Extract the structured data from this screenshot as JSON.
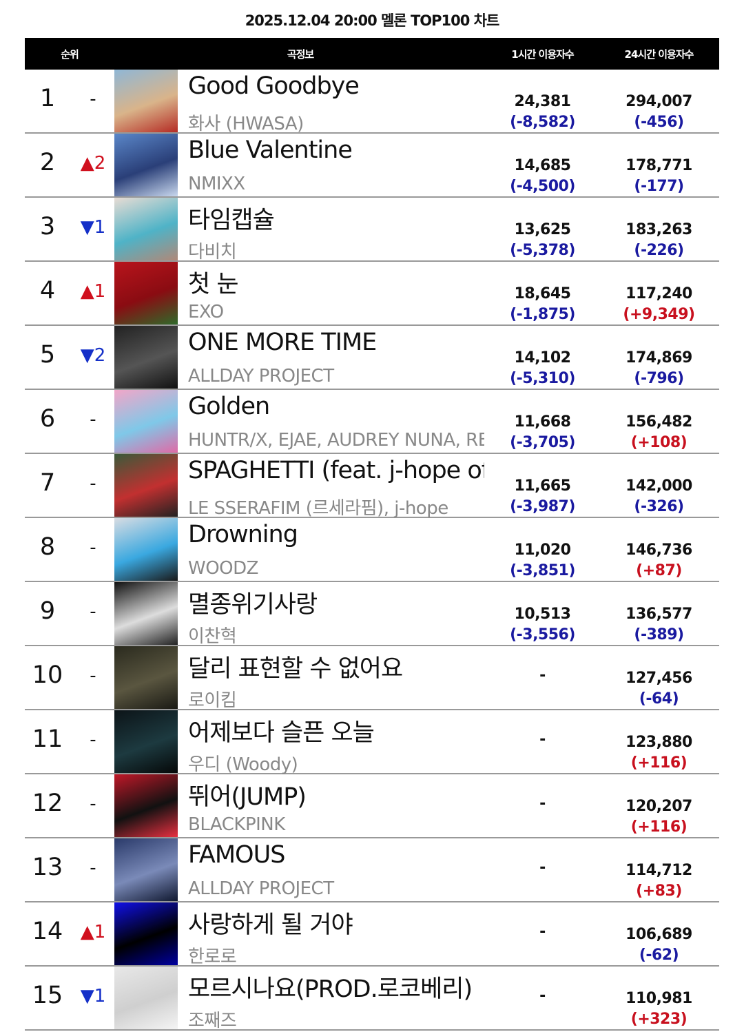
{
  "title": "2025.12.04 20:00 멜론 TOP100 차트",
  "columns": {
    "rank": "순위",
    "info": "곡정보",
    "hour": "1시간 이용자수",
    "day": "24시간 이용자수"
  },
  "colors": {
    "negative": "#1a1aa0",
    "positive": "#c8101e",
    "rank_up": "#d0101e",
    "rank_down": "#1530c8"
  },
  "rows": [
    {
      "rank": "1",
      "change": "-",
      "dir": "same",
      "song": "Good Goodbye",
      "artist": "화사 (HWASA)",
      "hour": "24,381",
      "hour_diff": "(-8,582)",
      "day": "294,007",
      "day_diff": "(-456)",
      "art": [
        "#8fb7d6",
        "#d9b48a",
        "#b52b24"
      ]
    },
    {
      "rank": "2",
      "change": "▲2",
      "dir": "up",
      "song": "Blue Valentine",
      "artist": "NMIXX",
      "hour": "14,685",
      "hour_diff": "(-4,500)",
      "day": "178,771",
      "day_diff": "(-177)",
      "art": [
        "#5a86c8",
        "#2a3f78",
        "#c9d8ee"
      ]
    },
    {
      "rank": "3",
      "change": "▼1",
      "dir": "down",
      "song": "타임캡슐",
      "artist": "다비치",
      "hour": "13,625",
      "hour_diff": "(-5,378)",
      "day": "183,263",
      "day_diff": "(-226)",
      "art": [
        "#e8dcd4",
        "#4fb3c7",
        "#b08878"
      ]
    },
    {
      "rank": "4",
      "change": "▲1",
      "dir": "up",
      "song": "첫 눈",
      "artist": "EXO",
      "hour": "18,645",
      "hour_diff": "(-1,875)",
      "day": "117,240",
      "day_diff": "(+9,349)",
      "art": [
        "#b8141c",
        "#8a0c12",
        "#2f6a2a"
      ]
    },
    {
      "rank": "5",
      "change": "▼2",
      "dir": "down",
      "song": "ONE MORE TIME",
      "artist": "ALLDAY PROJECT",
      "hour": "14,102",
      "hour_diff": "(-5,310)",
      "day": "174,869",
      "day_diff": "(-796)",
      "art": [
        "#222",
        "#555",
        "#111"
      ]
    },
    {
      "rank": "6",
      "change": "-",
      "dir": "same",
      "song": "Golden",
      "artist": "HUNTR/X, EJAE, AUDREY NUNA, REI AMI",
      "hour": "11,668",
      "hour_diff": "(-3,705)",
      "day": "156,482",
      "day_diff": "(+108)",
      "art": [
        "#f2a6c8",
        "#7fc8e8",
        "#e06aa6"
      ]
    },
    {
      "rank": "7",
      "change": "-",
      "dir": "same",
      "song": "SPAGHETTI (feat. j-hope of BTS)",
      "artist": "LE SSERAFIM (르세라핌), j-hope",
      "hour": "11,665",
      "hour_diff": "(-3,987)",
      "day": "142,000",
      "day_diff": "(-326)",
      "art": [
        "#3a5a3a",
        "#c23030",
        "#222"
      ]
    },
    {
      "rank": "8",
      "change": "-",
      "dir": "same",
      "song": "Drowning",
      "artist": "WOODZ",
      "hour": "11,020",
      "hour_diff": "(-3,851)",
      "day": "146,736",
      "day_diff": "(+87)",
      "art": [
        "#d8dce2",
        "#3aa8e0",
        "#1a1a1a"
      ]
    },
    {
      "rank": "9",
      "change": "-",
      "dir": "same",
      "song": "멸종위기사랑",
      "artist": "이찬혁",
      "hour": "10,513",
      "hour_diff": "(-3,556)",
      "day": "136,577",
      "day_diff": "(-389)",
      "art": [
        "#111",
        "#ddd",
        "#222"
      ]
    },
    {
      "rank": "10",
      "change": "-",
      "dir": "same",
      "song": "달리 표현할 수 없어요",
      "artist": "로이킴",
      "hour": "-",
      "hour_diff": "",
      "day": "127,456",
      "day_diff": "(-64)",
      "art": [
        "#2a2a1e",
        "#5a5640",
        "#1a1a14"
      ]
    },
    {
      "rank": "11",
      "change": "-",
      "dir": "same",
      "song": "어제보다 슬픈 오늘",
      "artist": "우디 (Woody)",
      "hour": "-",
      "hour_diff": "",
      "day": "123,880",
      "day_diff": "(+116)",
      "art": [
        "#0c1418",
        "#1d3a40",
        "#050808"
      ]
    },
    {
      "rank": "12",
      "change": "-",
      "dir": "same",
      "song": "뛰어(JUMP)",
      "artist": "BLACKPINK",
      "hour": "-",
      "hour_diff": "",
      "day": "120,207",
      "day_diff": "(+116)",
      "art": [
        "#c01828",
        "#111",
        "#e83040"
      ]
    },
    {
      "rank": "13",
      "change": "-",
      "dir": "same",
      "song": "FAMOUS",
      "artist": "ALLDAY PROJECT",
      "hour": "-",
      "hour_diff": "",
      "day": "114,712",
      "day_diff": "(+83)",
      "art": [
        "#2a3a6a",
        "#7a8ab8",
        "#101830"
      ]
    },
    {
      "rank": "14",
      "change": "▲1",
      "dir": "up",
      "song": "사랑하게 될 거야",
      "artist": "한로로",
      "hour": "-",
      "hour_diff": "",
      "day": "106,689",
      "day_diff": "(-62)",
      "art": [
        "#1010e8",
        "#000",
        "#0000a0"
      ]
    },
    {
      "rank": "15",
      "change": "▼1",
      "dir": "down",
      "song": "모르시나요(PROD.로코베리)",
      "artist": "조째즈",
      "hour": "-",
      "hour_diff": "",
      "day": "110,981",
      "day_diff": "(+323)",
      "art": [
        "#e8e8e8",
        "#cfcfcf",
        "#f4f4f4"
      ]
    }
  ]
}
